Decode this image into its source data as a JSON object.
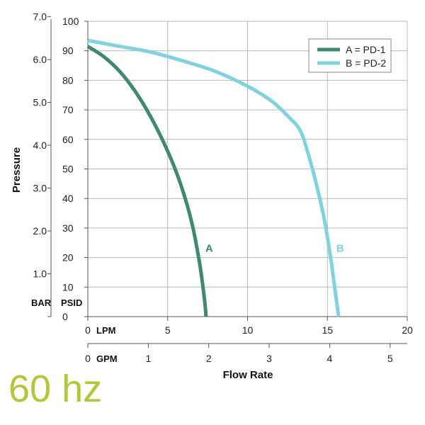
{
  "chart_data": {
    "type": "line",
    "xlabel": "Flow Rate",
    "ylabel": "Pressure",
    "x_units": {
      "primary": "LPM",
      "secondary": "GPM"
    },
    "y_units": {
      "primary": "PSID",
      "secondary": "BAR"
    },
    "xlim_lpm": [
      0,
      20
    ],
    "ylim_psid": [
      0,
      100
    ],
    "x_ticks_lpm": [
      "0",
      "5",
      "10",
      "15",
      "20"
    ],
    "x_ticks_gpm": [
      "0",
      "1",
      "2",
      "3",
      "4",
      "5"
    ],
    "y_ticks_psid": [
      "0",
      "10",
      "20",
      "30",
      "40",
      "50",
      "60",
      "70",
      "80",
      "90",
      "100"
    ],
    "y_ticks_bar": [
      "1.0",
      "2.0",
      "3.0",
      "4.0",
      "5.0",
      "6.0",
      "7.0"
    ],
    "grid": true,
    "legend_position": "top-right",
    "series": [
      {
        "name": "A = PD-1",
        "label": "A",
        "color": "#3f8a6e",
        "x": [
          0,
          1,
          2,
          3,
          4,
          5,
          5.8,
          6.5,
          7.0,
          7.3,
          7.4
        ],
        "y": [
          91.5,
          88,
          83,
          76,
          67,
          56,
          45,
          32,
          18,
          6,
          0
        ]
      },
      {
        "name": "B = PD-2",
        "label": "B",
        "color": "#7fd2de",
        "x": [
          0,
          2,
          4,
          6,
          8,
          10,
          11.5,
          12.5,
          13.3,
          13.8,
          14.3,
          14.8,
          15.2,
          15.5,
          15.7
        ],
        "y": [
          93.5,
          91.5,
          89.5,
          86.5,
          83,
          78,
          73,
          68,
          63,
          55,
          45,
          33,
          20,
          8,
          0
        ]
      }
    ]
  },
  "footer": {
    "frequency": "60 hz"
  }
}
